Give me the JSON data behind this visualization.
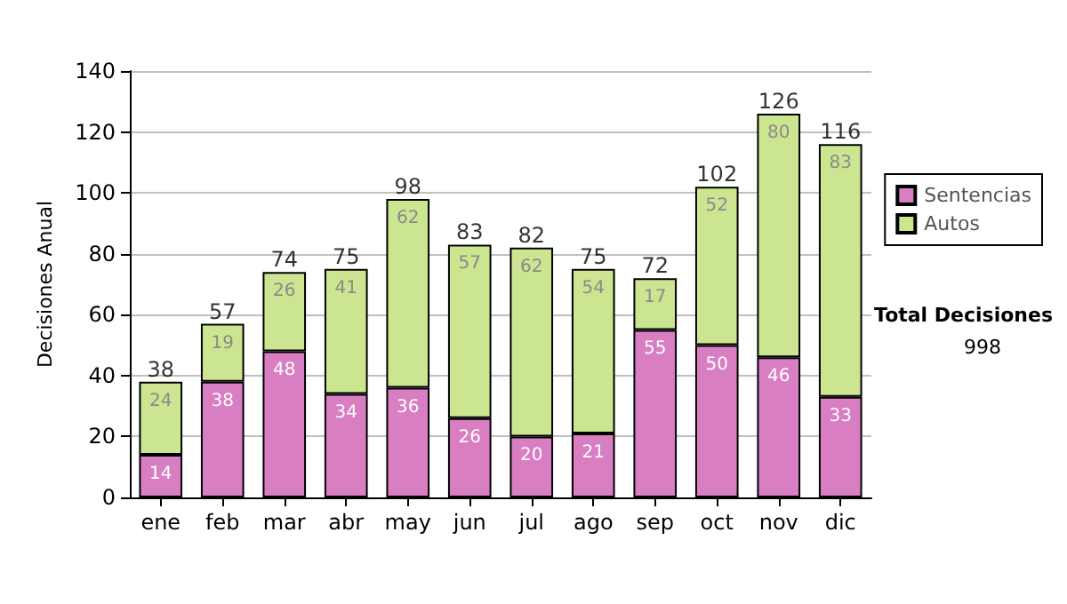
{
  "chart_data": {
    "type": "bar",
    "ylabel": "Decisiones Anual",
    "categories": [
      "ene",
      "feb",
      "mar",
      "abr",
      "may",
      "jun",
      "jul",
      "ago",
      "sep",
      "oct",
      "nov",
      "dic"
    ],
    "series": [
      {
        "name": "Sentencias",
        "color": "#d97ec2",
        "values": [
          14,
          38,
          48,
          34,
          36,
          26,
          20,
          21,
          55,
          50,
          46,
          33
        ]
      },
      {
        "name": "Autos",
        "color": "#cce590",
        "values": [
          24,
          19,
          26,
          41,
          62,
          57,
          62,
          54,
          17,
          52,
          80,
          83
        ]
      }
    ],
    "stacked": true,
    "data_labels": true,
    "totals": [
      "38",
      "57",
      "74",
      "75",
      "98",
      "83",
      "82",
      "75",
      "72",
      "102",
      "126",
      "116"
    ],
    "ylim": [
      0,
      140
    ],
    "yticks": [
      0,
      20,
      40,
      60,
      80,
      100,
      120,
      140
    ],
    "grid": "y",
    "legend": "right",
    "annotations": [
      "Total Decisiones",
      "998"
    ]
  }
}
